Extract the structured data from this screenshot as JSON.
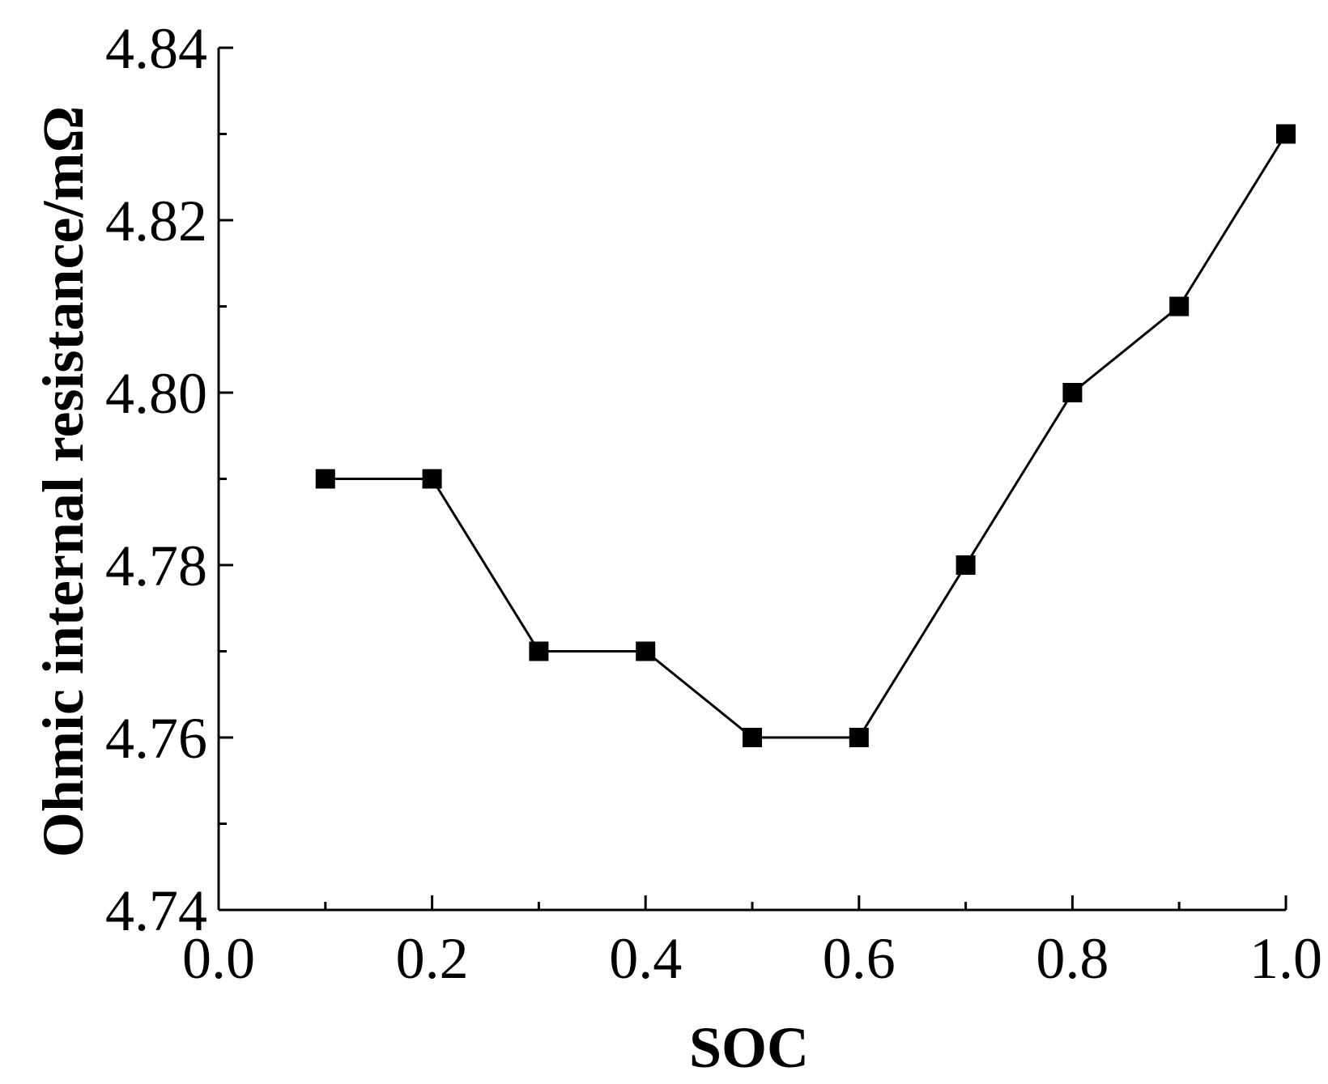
{
  "chart_data": {
    "type": "line",
    "title": "",
    "xlabel": "SOC",
    "ylabel": "Ohmic internal resistance/mΩ",
    "xlim": [
      0.0,
      1.0
    ],
    "ylim": [
      4.74,
      4.84
    ],
    "x_ticks": [
      0.0,
      0.2,
      0.4,
      0.6,
      0.8,
      1.0
    ],
    "x_tick_labels": [
      "0.0",
      "0.2",
      "0.4",
      "0.6",
      "0.8",
      "1.0"
    ],
    "x_minor_ticks": [
      0.1,
      0.3,
      0.5,
      0.7,
      0.9
    ],
    "y_ticks": [
      4.74,
      4.76,
      4.78,
      4.8,
      4.82,
      4.84
    ],
    "y_tick_labels": [
      "4.74",
      "4.76",
      "4.78",
      "4.80",
      "4.82",
      "4.84"
    ],
    "y_minor_ticks": [
      4.75,
      4.77,
      4.79,
      4.81,
      4.83
    ],
    "grid": false,
    "legend": "none",
    "series": [
      {
        "marker": "square",
        "color": "#000000",
        "x": [
          0.1,
          0.2,
          0.3,
          0.4,
          0.5,
          0.6,
          0.7,
          0.8,
          0.9,
          1.0
        ],
        "y": [
          4.79,
          4.79,
          4.77,
          4.77,
          4.76,
          4.76,
          4.78,
          4.8,
          4.81,
          4.83
        ]
      }
    ]
  }
}
